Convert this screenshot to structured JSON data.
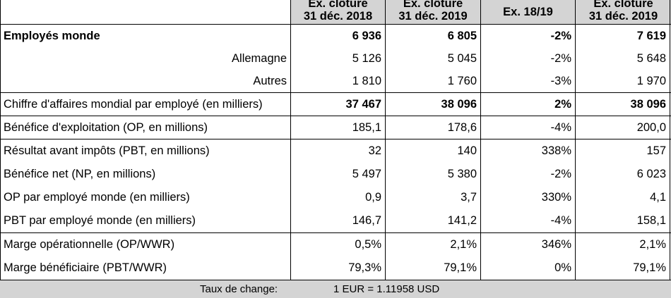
{
  "header": {
    "col1": [
      "Ex. clôture",
      "31 déc. 2018"
    ],
    "col2": [
      "Ex. clôture",
      "31 déc. 2019"
    ],
    "col3": [
      "Ex. 18/19"
    ],
    "col4": [
      "Ex. clôture",
      "31 déc. 2019"
    ]
  },
  "rows": [
    {
      "label": "Employés monde",
      "v1": "6 936",
      "v2": "6 805",
      "v3": "-2%",
      "v4": "7 619"
    },
    {
      "label": "Allemagne",
      "v1": "5 126",
      "v2": "5 045",
      "v3": "-2%",
      "v4": "5 648"
    },
    {
      "label": "Autres",
      "v1": "1 810",
      "v2": "1 760",
      "v3": "-3%",
      "v4": "1 970"
    },
    {
      "label": "Chiffre d'affaires mondial par employé (en milliers)",
      "v1": "37 467",
      "v2": "38 096",
      "v3": "2%",
      "v4": "38 096"
    },
    {
      "label": "Bénéfice d'exploitation (OP, en millions)",
      "v1": "185,1",
      "v2": "178,6",
      "v3": "-4%",
      "v4": "200,0"
    },
    {
      "label": "Résultat avant impôts (PBT, en millions)",
      "v1": "32",
      "v2": "140",
      "v3": "338%",
      "v4": "157"
    },
    {
      "label": "Bénéfice net (NP, en millions)",
      "v1": "5 497",
      "v2": "5 380",
      "v3": "-2%",
      "v4": "6 023"
    },
    {
      "label": "OP par employé monde (en milliers)",
      "v1": "0,9",
      "v2": "3,7",
      "v3": "330%",
      "v4": "4,1"
    },
    {
      "label": "PBT par employé monde (en milliers)",
      "v1": "146,7",
      "v2": "141,2",
      "v3": "-4%",
      "v4": "158,1"
    },
    {
      "label": "Marge opérationnelle (OP/WWR)",
      "v1": "0,5%",
      "v2": "2,1%",
      "v3": "346%",
      "v4": "2,1%"
    },
    {
      "label": "Marge bénéficiaire (PBT/WWR)",
      "v1": "79,3%",
      "v2": "79,1%",
      "v3": "0%",
      "v4": "79,1%"
    }
  ],
  "footer": {
    "label": "Taux de change:",
    "value": "1 EUR =  1.11958 USD"
  }
}
